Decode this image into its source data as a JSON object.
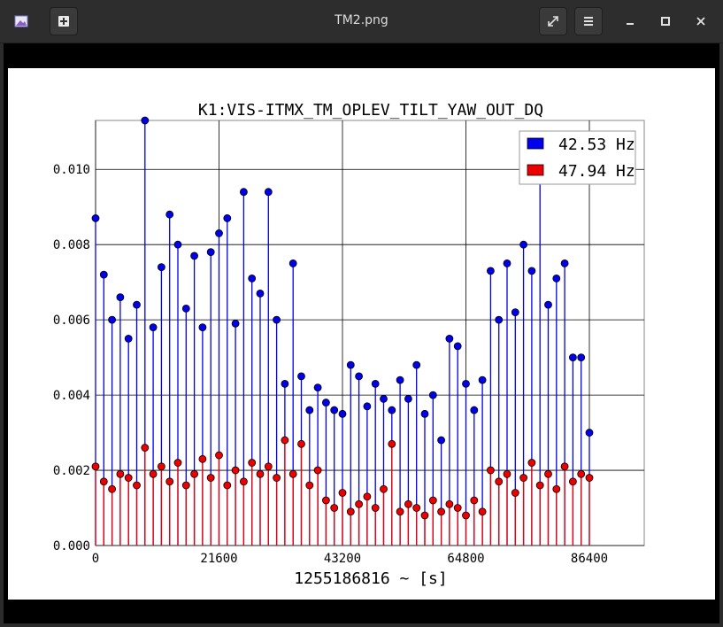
{
  "window": {
    "title": "TM2.png"
  },
  "chart_data": {
    "type": "scatter",
    "title": "K1:VIS-ITMX_TM_OPLEV_TILT_YAW_OUT_DQ",
    "xlabel": "1255186816 ~ [s]",
    "ylabel": "",
    "xlim": [
      0,
      96000
    ],
    "ylim": [
      0,
      0.0113
    ],
    "xticks": [
      0,
      21600,
      43200,
      64800,
      86400
    ],
    "xtick_labels": [
      "0",
      "21600",
      "43200",
      "64800",
      "86400"
    ],
    "yticks": [
      0,
      0.002,
      0.004,
      0.006,
      0.008,
      0.01
    ],
    "ytick_labels": [
      "0.000",
      "0.002",
      "0.004",
      "0.006",
      "0.008",
      "0.010"
    ],
    "grid": true,
    "legend_position": "top-right",
    "series": [
      {
        "name": "42.53 Hz",
        "color": "#0000ee",
        "marker": "circle",
        "stem": true,
        "x": [
          0,
          1440,
          2880,
          4320,
          5760,
          7200,
          8640,
          10080,
          11520,
          12960,
          14400,
          15840,
          17280,
          18720,
          20160,
          21600,
          23040,
          24480,
          25920,
          27360,
          28800,
          30240,
          31680,
          33120,
          34560,
          36000,
          37440,
          38880,
          40320,
          41760,
          43200,
          44640,
          46080,
          47520,
          48960,
          50400,
          51840,
          53280,
          54720,
          56160,
          57600,
          59040,
          60480,
          61920,
          63360,
          64800,
          66240,
          67680,
          69120,
          70560,
          72000,
          73440,
          74880,
          76320,
          77760,
          79200,
          80640,
          82080,
          83520,
          84960,
          86400
        ],
        "values": [
          0.0087,
          0.0072,
          0.006,
          0.0066,
          0.0055,
          0.0064,
          0.0113,
          0.0058,
          0.0074,
          0.0088,
          0.008,
          0.0063,
          0.0077,
          0.0058,
          0.0078,
          0.0083,
          0.0087,
          0.0059,
          0.0094,
          0.0071,
          0.0067,
          0.0094,
          0.006,
          0.0043,
          0.0075,
          0.0045,
          0.0036,
          0.0042,
          0.0038,
          0.0036,
          0.0035,
          0.0048,
          0.0045,
          0.0037,
          0.0043,
          0.0039,
          0.0036,
          0.0044,
          0.0039,
          0.0048,
          0.0035,
          0.004,
          0.0028,
          0.0055,
          0.0053,
          0.0043,
          0.0036,
          0.0044,
          0.0073,
          0.006,
          0.0075,
          0.0062,
          0.008,
          0.0073,
          0.0097,
          0.0064,
          0.0071,
          0.0075,
          0.005,
          0.005,
          0.003
        ]
      },
      {
        "name": "47.94 Hz",
        "color": "#ee0000",
        "marker": "circle",
        "stem": true,
        "x": [
          0,
          1440,
          2880,
          4320,
          5760,
          7200,
          8640,
          10080,
          11520,
          12960,
          14400,
          15840,
          17280,
          18720,
          20160,
          21600,
          23040,
          24480,
          25920,
          27360,
          28800,
          30240,
          31680,
          33120,
          34560,
          36000,
          37440,
          38880,
          40320,
          41760,
          43200,
          44640,
          46080,
          47520,
          48960,
          50400,
          51840,
          53280,
          54720,
          56160,
          57600,
          59040,
          60480,
          61920,
          63360,
          64800,
          66240,
          67680,
          69120,
          70560,
          72000,
          73440,
          74880,
          76320,
          77760,
          79200,
          80640,
          82080,
          83520,
          84960,
          86400
        ],
        "values": [
          0.0021,
          0.0017,
          0.0015,
          0.0019,
          0.0018,
          0.0016,
          0.0026,
          0.0019,
          0.0021,
          0.0017,
          0.0022,
          0.0016,
          0.0019,
          0.0023,
          0.0018,
          0.0024,
          0.0016,
          0.002,
          0.0017,
          0.0022,
          0.0019,
          0.0021,
          0.0018,
          0.0028,
          0.0019,
          0.0027,
          0.0016,
          0.002,
          0.0012,
          0.001,
          0.0014,
          0.0009,
          0.0011,
          0.0013,
          0.001,
          0.0015,
          0.0027,
          0.0009,
          0.0011,
          0.001,
          0.0008,
          0.0012,
          0.0009,
          0.0011,
          0.001,
          0.0008,
          0.0012,
          0.0009,
          0.002,
          0.0017,
          0.0019,
          0.0014,
          0.0018,
          0.0022,
          0.0016,
          0.0019,
          0.0015,
          0.0021,
          0.0017,
          0.0019,
          0.0018
        ]
      }
    ]
  }
}
